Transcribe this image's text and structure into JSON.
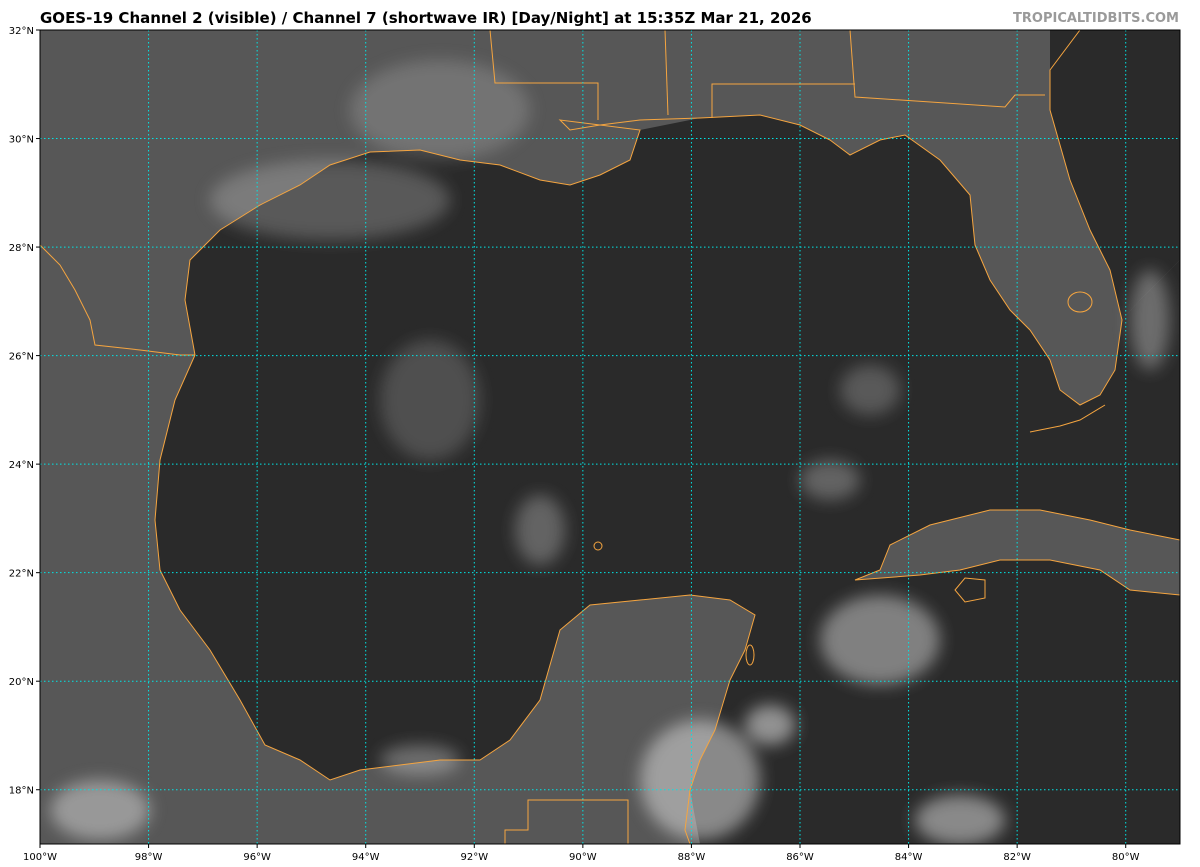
{
  "header": {
    "title": "GOES-19 Channel 2 (visible) / Channel 7 (shortwave IR) [Day/Night] at 15:35Z Mar 21, 2026",
    "brand": "TROPICALTIDBITS.COM"
  },
  "map": {
    "extent": {
      "lon_min": -100,
      "lon_max": -79,
      "lat_min": 17,
      "lat_max": 32
    },
    "lon_ticks": [
      {
        "value": -100,
        "label": "100°W"
      },
      {
        "value": -98,
        "label": "98°W"
      },
      {
        "value": -96,
        "label": "96°W"
      },
      {
        "value": -94,
        "label": "94°W"
      },
      {
        "value": -92,
        "label": "92°W"
      },
      {
        "value": -90,
        "label": "90°W"
      },
      {
        "value": -88,
        "label": "88°W"
      },
      {
        "value": -86,
        "label": "86°W"
      },
      {
        "value": -84,
        "label": "84°W"
      },
      {
        "value": -82,
        "label": "82°W"
      },
      {
        "value": -80,
        "label": "80°W"
      }
    ],
    "lat_ticks": [
      {
        "value": 32,
        "label": "32°N"
      },
      {
        "value": 30,
        "label": "30°N"
      },
      {
        "value": 28,
        "label": "28°N"
      },
      {
        "value": 26,
        "label": "26°N"
      },
      {
        "value": 24,
        "label": "24°N"
      },
      {
        "value": 22,
        "label": "22°N"
      },
      {
        "value": 20,
        "label": "20°N"
      },
      {
        "value": 18,
        "label": "18°N"
      }
    ],
    "colors": {
      "ocean": "#2a2a2a",
      "land": "#565656",
      "coastline": "#f5a540",
      "gridline": "#00e5e5",
      "cloud": "#e8e8e8"
    }
  }
}
